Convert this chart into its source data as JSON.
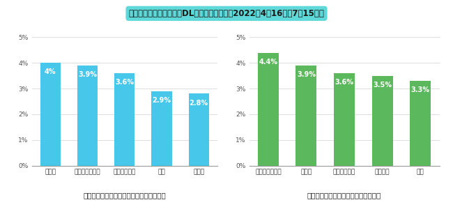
{
  "title": "「山と高原地図」アプリDL数が多いエリア（2022年4月16日～7月15日）",
  "title_bg_color": "#5ed8d8",
  "title_fontsize": 8.5,
  "left": {
    "categories": [
      "八ヶ屳",
      "様ヶ屳・穂高屳",
      "北屳・甲斐駒",
      "尾瀬",
      "富士山"
    ],
    "values": [
      4.0,
      3.9,
      3.6,
      2.9,
      2.8
    ],
    "labels": [
      "4%",
      "3.9%",
      "3.6%",
      "2.9%",
      "2.8%"
    ],
    "bar_color": "#47c8ea",
    "subtitle": "「山と高原地図ホーダイ」（サブスク版）",
    "ylim": [
      0,
      5
    ],
    "yticks": [
      0,
      1,
      2,
      3,
      4,
      5
    ],
    "ytick_labels": [
      "0%",
      "1%",
      "2%",
      "3%",
      "4%",
      "5%"
    ]
  },
  "right": {
    "categories": [
      "様ヶ屳・穂高屳",
      "八ヶ屳",
      "北屳・甲斐駒",
      "剣・立山",
      "尾瀬"
    ],
    "values": [
      4.4,
      3.9,
      3.6,
      3.5,
      3.3
    ],
    "labels": [
      "4.4%",
      "3.9%",
      "3.6%",
      "3.5%",
      "3.3%"
    ],
    "bar_color": "#5cb85c",
    "subtitle": "「山と高原地図」（地図単品購入版）",
    "ylim": [
      0,
      5
    ],
    "yticks": [
      0,
      1,
      2,
      3,
      4,
      5
    ],
    "ytick_labels": [
      "0%",
      "1%",
      "2%",
      "3%",
      "4%",
      "5%"
    ]
  },
  "label_fontsize": 7.0,
  "tick_fontsize": 6.5,
  "subtitle_fontsize": 7.5,
  "bg_color": "#ffffff"
}
